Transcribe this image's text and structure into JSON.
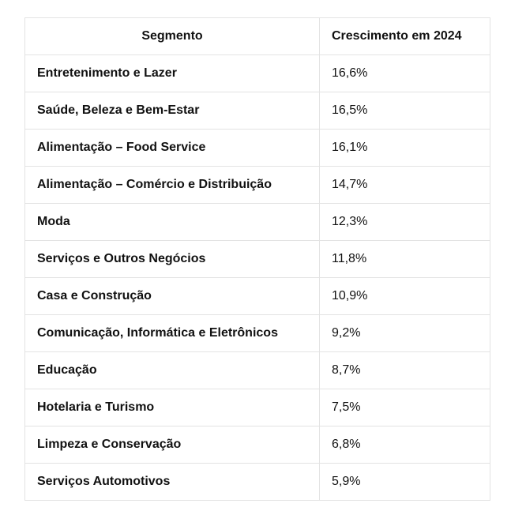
{
  "table": {
    "headers": {
      "segment": "Segmento",
      "growth": "Crescimento em 2024"
    },
    "rows": [
      {
        "segment": "Entretenimento e Lazer",
        "growth": "16,6%"
      },
      {
        "segment": "Saúde, Beleza e Bem-Estar",
        "growth": "16,5%"
      },
      {
        "segment": "Alimentação – Food Service",
        "growth": "16,1%"
      },
      {
        "segment": "Alimentação – Comércio e Distribuição",
        "growth": "14,7%"
      },
      {
        "segment": "Moda",
        "growth": "12,3%"
      },
      {
        "segment": "Serviços e Outros Negócios",
        "growth": "11,8%"
      },
      {
        "segment": "Casa e Construção",
        "growth": "10,9%"
      },
      {
        "segment": "Comunicação, Informática e Eletrônicos",
        "growth": "9,2%"
      },
      {
        "segment": "Educação",
        "growth": "8,7%"
      },
      {
        "segment": "Hotelaria e Turismo",
        "growth": "7,5%"
      },
      {
        "segment": "Limpeza e Conservação",
        "growth": "6,8%"
      },
      {
        "segment": "Serviços Automotivos",
        "growth": "5,9%"
      }
    ]
  }
}
